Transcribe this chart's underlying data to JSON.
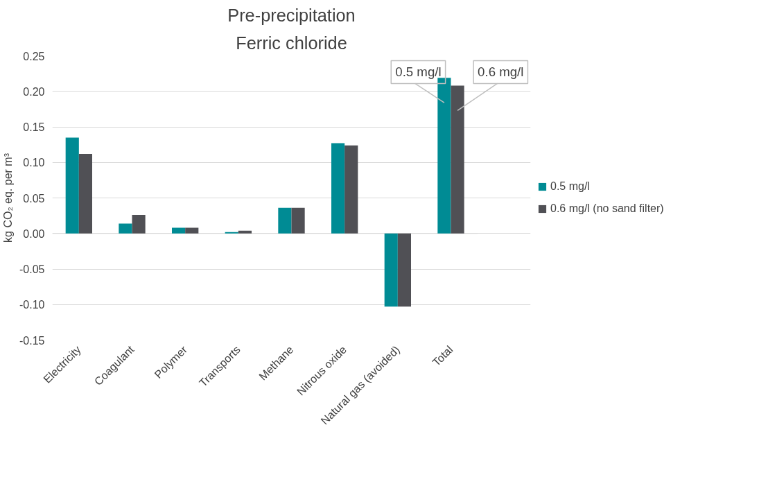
{
  "chart_data": {
    "type": "bar",
    "title": "Pre-precipitation",
    "subtitle": "Ferric chloride",
    "ylabel": "kg CO₂ eq. per m³",
    "categories": [
      "Electricity",
      "Coagulant",
      "Polymer",
      "Transports",
      "Methane",
      "Nitrous oxide",
      "Natural gas (avoided)",
      "Total"
    ],
    "series": [
      {
        "name": "0.5 mg/l",
        "color": "#008b94",
        "values": [
          0.135,
          0.014,
          0.008,
          0.002,
          0.036,
          0.127,
          -0.103,
          0.219
        ]
      },
      {
        "name": "0.6 mg/l (no sand filter)",
        "color": "#505055",
        "values": [
          0.112,
          0.026,
          0.008,
          0.004,
          0.036,
          0.124,
          -0.103,
          0.208
        ]
      }
    ],
    "ylim": [
      -0.15,
      0.25
    ],
    "yticks": [
      {
        "value": -0.15,
        "label": "-0.15"
      },
      {
        "value": -0.1,
        "label": "-0.10"
      },
      {
        "value": -0.05,
        "label": "-0.05"
      },
      {
        "value": 0,
        "label": "0.00"
      },
      {
        "value": 0.05,
        "label": "0.05"
      },
      {
        "value": 0.1,
        "label": "0.10"
      },
      {
        "value": 0.15,
        "label": "0.15"
      },
      {
        "value": 0.2,
        "label": "0.20"
      },
      {
        "value": 0.25,
        "label": "0.25"
      }
    ],
    "annotations": [
      {
        "text": "0.5 mg/l",
        "x": "Total",
        "y": 0.219
      },
      {
        "text": "0.6 mg/l",
        "x": "Total",
        "y": 0.208
      }
    ],
    "grid": "y",
    "legend": "right"
  }
}
